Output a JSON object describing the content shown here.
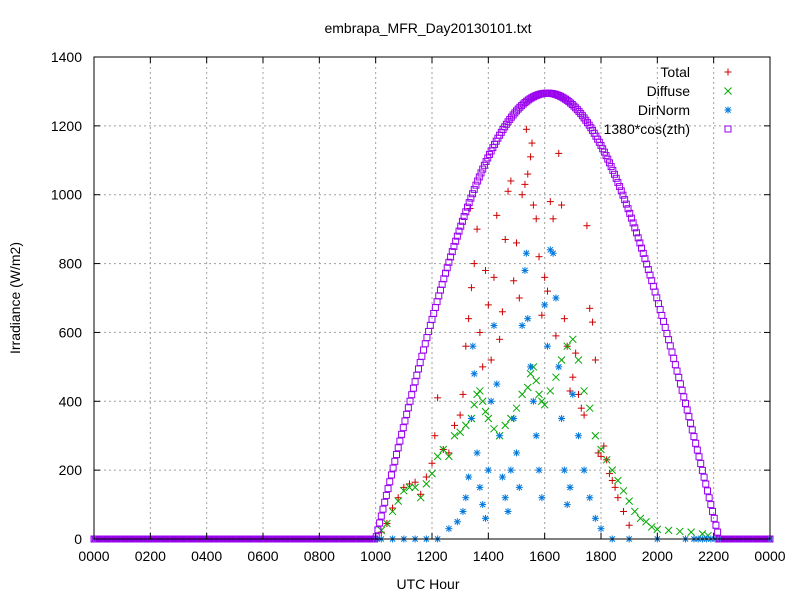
{
  "chart_data": {
    "type": "scatter",
    "title": "embrapa_MFR_Day20130101.txt",
    "xlabel": "UTC Hour",
    "ylabel": "Irradiance (W/m2)",
    "xlim": [
      0,
      24
    ],
    "ylim": [
      0,
      1400
    ],
    "x_ticks": [
      {
        "value": 0,
        "label": "0000"
      },
      {
        "value": 2,
        "label": "0200"
      },
      {
        "value": 4,
        "label": "0400"
      },
      {
        "value": 6,
        "label": "0600"
      },
      {
        "value": 8,
        "label": "0800"
      },
      {
        "value": 10,
        "label": "1000"
      },
      {
        "value": 12,
        "label": "1200"
      },
      {
        "value": 14,
        "label": "1400"
      },
      {
        "value": 16,
        "label": "1600"
      },
      {
        "value": 18,
        "label": "1800"
      },
      {
        "value": 20,
        "label": "2000"
      },
      {
        "value": 22,
        "label": "2200"
      },
      {
        "value": 24,
        "label": "0000"
      }
    ],
    "y_ticks": [
      0,
      200,
      400,
      600,
      800,
      1000,
      1200,
      1400
    ],
    "grid": true,
    "legend_position": "top-right",
    "series": [
      {
        "name": "Total",
        "marker": "plus",
        "color": "#cc0000",
        "points": [
          [
            10.2,
            20
          ],
          [
            10.4,
            45
          ],
          [
            10.6,
            90
          ],
          [
            10.8,
            120
          ],
          [
            11.0,
            150
          ],
          [
            11.2,
            160
          ],
          [
            11.4,
            165
          ],
          [
            11.6,
            130
          ],
          [
            11.8,
            180
          ],
          [
            12.0,
            220
          ],
          [
            12.1,
            300
          ],
          [
            12.2,
            410
          ],
          [
            12.4,
            260
          ],
          [
            12.6,
            250
          ],
          [
            12.8,
            330
          ],
          [
            13.0,
            360
          ],
          [
            13.1,
            420
          ],
          [
            13.2,
            560
          ],
          [
            13.3,
            640
          ],
          [
            13.35,
            960
          ],
          [
            13.4,
            730
          ],
          [
            13.5,
            800
          ],
          [
            13.6,
            900
          ],
          [
            13.7,
            600
          ],
          [
            13.8,
            500
          ],
          [
            13.9,
            780
          ],
          [
            14.0,
            680
          ],
          [
            14.1,
            520
          ],
          [
            14.2,
            760
          ],
          [
            14.3,
            940
          ],
          [
            14.4,
            580
          ],
          [
            14.5,
            660
          ],
          [
            14.6,
            870
          ],
          [
            14.7,
            1010
          ],
          [
            14.8,
            1040
          ],
          [
            14.9,
            750
          ],
          [
            15.0,
            860
          ],
          [
            15.1,
            700
          ],
          [
            15.2,
            1000
          ],
          [
            15.3,
            1030
          ],
          [
            15.35,
            1190
          ],
          [
            15.4,
            1060
          ],
          [
            15.5,
            1110
          ],
          [
            15.55,
            1150
          ],
          [
            15.6,
            970
          ],
          [
            15.7,
            930
          ],
          [
            15.8,
            820
          ],
          [
            15.9,
            650
          ],
          [
            16.0,
            760
          ],
          [
            16.1,
            720
          ],
          [
            16.2,
            980
          ],
          [
            16.3,
            930
          ],
          [
            16.4,
            590
          ],
          [
            16.5,
            1120
          ],
          [
            16.6,
            970
          ],
          [
            16.7,
            640
          ],
          [
            16.8,
            560
          ],
          [
            16.9,
            430
          ],
          [
            17.0,
            470
          ],
          [
            17.1,
            540
          ],
          [
            17.2,
            420
          ],
          [
            17.3,
            380
          ],
          [
            17.4,
            360
          ],
          [
            17.5,
            910
          ],
          [
            17.6,
            670
          ],
          [
            17.7,
            630
          ],
          [
            17.8,
            520
          ],
          [
            17.9,
            250
          ],
          [
            18.0,
            240
          ],
          [
            18.1,
            270
          ],
          [
            18.2,
            230
          ],
          [
            18.3,
            190
          ],
          [
            18.4,
            170
          ],
          [
            18.5,
            150
          ],
          [
            18.6,
            120
          ],
          [
            18.8,
            80
          ],
          [
            19.0,
            40
          ]
        ]
      },
      {
        "name": "Diffuse",
        "marker": "cross",
        "color": "#00aa00",
        "points": [
          [
            10.2,
            25
          ],
          [
            10.4,
            45
          ],
          [
            10.6,
            80
          ],
          [
            10.8,
            110
          ],
          [
            11.0,
            140
          ],
          [
            11.2,
            150
          ],
          [
            11.4,
            150
          ],
          [
            11.6,
            120
          ],
          [
            11.8,
            160
          ],
          [
            12.0,
            190
          ],
          [
            12.2,
            240
          ],
          [
            12.4,
            260
          ],
          [
            12.6,
            240
          ],
          [
            12.8,
            300
          ],
          [
            13.0,
            310
          ],
          [
            13.2,
            330
          ],
          [
            13.4,
            350
          ],
          [
            13.5,
            390
          ],
          [
            13.6,
            420
          ],
          [
            13.7,
            430
          ],
          [
            13.8,
            400
          ],
          [
            13.9,
            370
          ],
          [
            14.0,
            350
          ],
          [
            14.2,
            320
          ],
          [
            14.4,
            300
          ],
          [
            14.6,
            330
          ],
          [
            14.8,
            350
          ],
          [
            15.0,
            380
          ],
          [
            15.2,
            420
          ],
          [
            15.4,
            440
          ],
          [
            15.5,
            480
          ],
          [
            15.6,
            500
          ],
          [
            15.7,
            460
          ],
          [
            15.8,
            420
          ],
          [
            15.9,
            400
          ],
          [
            16.0,
            390
          ],
          [
            16.2,
            430
          ],
          [
            16.4,
            470
          ],
          [
            16.6,
            520
          ],
          [
            16.8,
            560
          ],
          [
            17.0,
            580
          ],
          [
            17.2,
            520
          ],
          [
            17.4,
            430
          ],
          [
            17.6,
            380
          ],
          [
            17.8,
            300
          ],
          [
            18.0,
            260
          ],
          [
            18.2,
            230
          ],
          [
            18.4,
            200
          ],
          [
            18.6,
            170
          ],
          [
            18.8,
            140
          ],
          [
            19.0,
            110
          ],
          [
            19.2,
            80
          ],
          [
            19.4,
            60
          ],
          [
            19.6,
            50
          ],
          [
            19.8,
            35
          ],
          [
            20.0,
            28
          ],
          [
            20.4,
            25
          ],
          [
            20.8,
            22
          ],
          [
            21.2,
            20
          ],
          [
            21.6,
            15
          ],
          [
            21.8,
            10
          ]
        ]
      },
      {
        "name": "DirNorm",
        "marker": "star",
        "color": "#0077dd",
        "points": [
          [
            10.2,
            0
          ],
          [
            10.6,
            0
          ],
          [
            11.0,
            0
          ],
          [
            11.4,
            0
          ],
          [
            11.8,
            0
          ],
          [
            12.2,
            0
          ],
          [
            12.6,
            30
          ],
          [
            12.9,
            50
          ],
          [
            13.1,
            80
          ],
          [
            13.2,
            120
          ],
          [
            13.3,
            180
          ],
          [
            13.4,
            350
          ],
          [
            13.45,
            560
          ],
          [
            13.5,
            480
          ],
          [
            13.6,
            250
          ],
          [
            13.7,
            150
          ],
          [
            13.8,
            100
          ],
          [
            13.9,
            60
          ],
          [
            14.0,
            200
          ],
          [
            14.1,
            400
          ],
          [
            14.2,
            620
          ],
          [
            14.3,
            450
          ],
          [
            14.4,
            300
          ],
          [
            14.5,
            180
          ],
          [
            14.6,
            120
          ],
          [
            14.7,
            80
          ],
          [
            14.8,
            200
          ],
          [
            14.9,
            350
          ],
          [
            15.0,
            250
          ],
          [
            15.1,
            150
          ],
          [
            15.2,
            620
          ],
          [
            15.3,
            780
          ],
          [
            15.35,
            830
          ],
          [
            15.4,
            640
          ],
          [
            15.5,
            500
          ],
          [
            15.6,
            400
          ],
          [
            15.7,
            300
          ],
          [
            15.8,
            200
          ],
          [
            15.9,
            120
          ],
          [
            16.0,
            680
          ],
          [
            16.1,
            560
          ],
          [
            16.2,
            840
          ],
          [
            16.3,
            830
          ],
          [
            16.4,
            700
          ],
          [
            16.5,
            500
          ],
          [
            16.6,
            350
          ],
          [
            16.7,
            200
          ],
          [
            16.8,
            100
          ],
          [
            16.9,
            150
          ],
          [
            17.0,
            420
          ],
          [
            17.2,
            300
          ],
          [
            17.4,
            200
          ],
          [
            17.6,
            120
          ],
          [
            17.8,
            60
          ],
          [
            18.0,
            30
          ],
          [
            18.4,
            0
          ],
          [
            19.0,
            0
          ],
          [
            20.0,
            0
          ],
          [
            21.0,
            0
          ]
        ]
      },
      {
        "name": "1380*cos(zth)",
        "marker": "square",
        "color": "#9900ee",
        "curve": {
          "sunrise": 10.0,
          "sunset": 22.2,
          "peak": 1295
        }
      }
    ]
  }
}
